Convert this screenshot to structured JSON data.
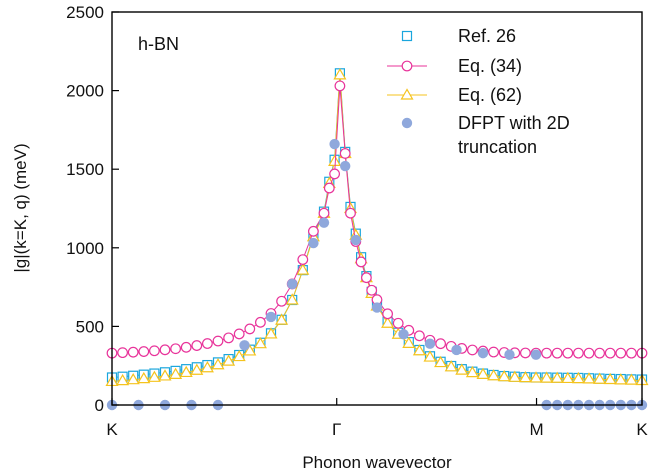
{
  "chart_data": {
    "type": "scatter",
    "title": "",
    "xlabel": "Phonon wavevector",
    "ylabel": "|g|(k=K, q) (meV)",
    "annotation": "h-BN",
    "legend_position": "top-right",
    "grid": false,
    "xlim": [
      0,
      1
    ],
    "ylim": [
      0,
      2500
    ],
    "x_ticks": [
      {
        "label": "K",
        "pos": 0
      },
      {
        "label": "Γ",
        "pos": 0.424
      },
      {
        "label": "M",
        "pos": 0.801
      },
      {
        "label": "K",
        "pos": 1
      }
    ],
    "y_ticks": [
      0,
      500,
      1000,
      1500,
      2000,
      2500
    ],
    "colors": {
      "ref26": "#1aa6dd",
      "eq34": "#e8339a",
      "eq62": "#f5c31d",
      "dfpt": "#8fa8dc"
    },
    "series": [
      {
        "name": "Ref. 26",
        "marker": "square",
        "x": [
          0,
          0.02,
          0.04,
          0.06,
          0.08,
          0.1,
          0.12,
          0.14,
          0.16,
          0.18,
          0.2,
          0.22,
          0.24,
          0.26,
          0.28,
          0.3,
          0.32,
          0.34,
          0.36,
          0.38,
          0.4,
          0.41,
          0.42,
          0.43,
          0.44,
          0.45,
          0.46,
          0.47,
          0.48,
          0.49,
          0.5,
          0.52,
          0.54,
          0.56,
          0.58,
          0.6,
          0.62,
          0.64,
          0.66,
          0.68,
          0.7,
          0.72,
          0.74,
          0.76,
          0.78,
          0.8,
          0.82,
          0.84,
          0.86,
          0.88,
          0.9,
          0.92,
          0.94,
          0.96,
          0.98,
          1.0
        ],
        "y": [
          175,
          180,
          186,
          193,
          200,
          208,
          217,
          228,
          240,
          254,
          271,
          292,
          318,
          352,
          396,
          456,
          542,
          668,
          858,
          1080,
          1230,
          1420,
          1560,
          2110,
          1610,
          1260,
          1090,
          940,
          820,
          720,
          640,
          530,
          460,
          400,
          350,
          310,
          275,
          248,
          228,
          212,
          200,
          191,
          184,
          180,
          177,
          175,
          175,
          174,
          173,
          172,
          170,
          168,
          166,
          165,
          163,
          162
        ]
      },
      {
        "name": "Eq. (34)",
        "marker": "circle",
        "x": [
          0,
          0.02,
          0.04,
          0.06,
          0.08,
          0.1,
          0.12,
          0.14,
          0.16,
          0.18,
          0.2,
          0.22,
          0.24,
          0.26,
          0.28,
          0.3,
          0.32,
          0.34,
          0.36,
          0.38,
          0.4,
          0.41,
          0.42,
          0.43,
          0.44,
          0.45,
          0.46,
          0.47,
          0.48,
          0.49,
          0.5,
          0.52,
          0.54,
          0.56,
          0.58,
          0.6,
          0.62,
          0.64,
          0.66,
          0.68,
          0.7,
          0.72,
          0.74,
          0.76,
          0.78,
          0.8,
          0.82,
          0.84,
          0.86,
          0.88,
          0.9,
          0.92,
          0.94,
          0.96,
          0.98,
          1.0
        ],
        "y": [
          330,
          333,
          336,
          340,
          345,
          351,
          358,
          367,
          378,
          391,
          407,
          427,
          452,
          484,
          526,
          582,
          660,
          770,
          925,
          1105,
          1220,
          1380,
          1470,
          2030,
          1600,
          1220,
          1040,
          910,
          810,
          730,
          670,
          580,
          520,
          475,
          440,
          412,
          390,
          373,
          360,
          350,
          343,
          337,
          334,
          332,
          331,
          330,
          330,
          330,
          330,
          330,
          330,
          330,
          330,
          330,
          330,
          330
        ]
      },
      {
        "name": "Eq. (62)",
        "marker": "triangle",
        "x": [
          0,
          0.02,
          0.04,
          0.06,
          0.08,
          0.1,
          0.12,
          0.14,
          0.16,
          0.18,
          0.2,
          0.22,
          0.24,
          0.26,
          0.28,
          0.3,
          0.32,
          0.34,
          0.36,
          0.38,
          0.4,
          0.41,
          0.42,
          0.43,
          0.44,
          0.45,
          0.46,
          0.47,
          0.48,
          0.49,
          0.5,
          0.52,
          0.54,
          0.56,
          0.58,
          0.6,
          0.62,
          0.64,
          0.66,
          0.68,
          0.7,
          0.72,
          0.74,
          0.76,
          0.78,
          0.8,
          0.82,
          0.84,
          0.86,
          0.88,
          0.9,
          0.92,
          0.94,
          0.96,
          0.98,
          1.0
        ],
        "y": [
          150,
          155,
          161,
          168,
          176,
          185,
          195,
          207,
          221,
          237,
          256,
          279,
          308,
          344,
          390,
          452,
          540,
          668,
          858,
          1070,
          1220,
          1410,
          1550,
          2100,
          1600,
          1250,
          1080,
          930,
          810,
          710,
          630,
          520,
          450,
          392,
          345,
          305,
          270,
          243,
          222,
          206,
          195,
          186,
          180,
          176,
          174,
          172,
          171,
          170,
          169,
          168,
          166,
          164,
          162,
          160,
          158,
          156
        ]
      },
      {
        "name": "DFPT with 2D truncation",
        "marker": "dot",
        "x": [
          0,
          0.05,
          0.1,
          0.15,
          0.2,
          0.25,
          0.3,
          0.34,
          0.38,
          0.4,
          0.42,
          0.44,
          0.46,
          0.5,
          0.55,
          0.6,
          0.65,
          0.7,
          0.75,
          0.8,
          0.82,
          0.84,
          0.86,
          0.88,
          0.9,
          0.92,
          0.94,
          0.96,
          0.98,
          1.0
        ],
        "y": [
          0,
          0,
          0,
          0,
          0,
          380,
          560,
          770,
          1030,
          1160,
          1660,
          1520,
          1050,
          620,
          450,
          390,
          350,
          330,
          320,
          320,
          0,
          0,
          0,
          0,
          0,
          0,
          0,
          0,
          0,
          0
        ]
      }
    ]
  }
}
